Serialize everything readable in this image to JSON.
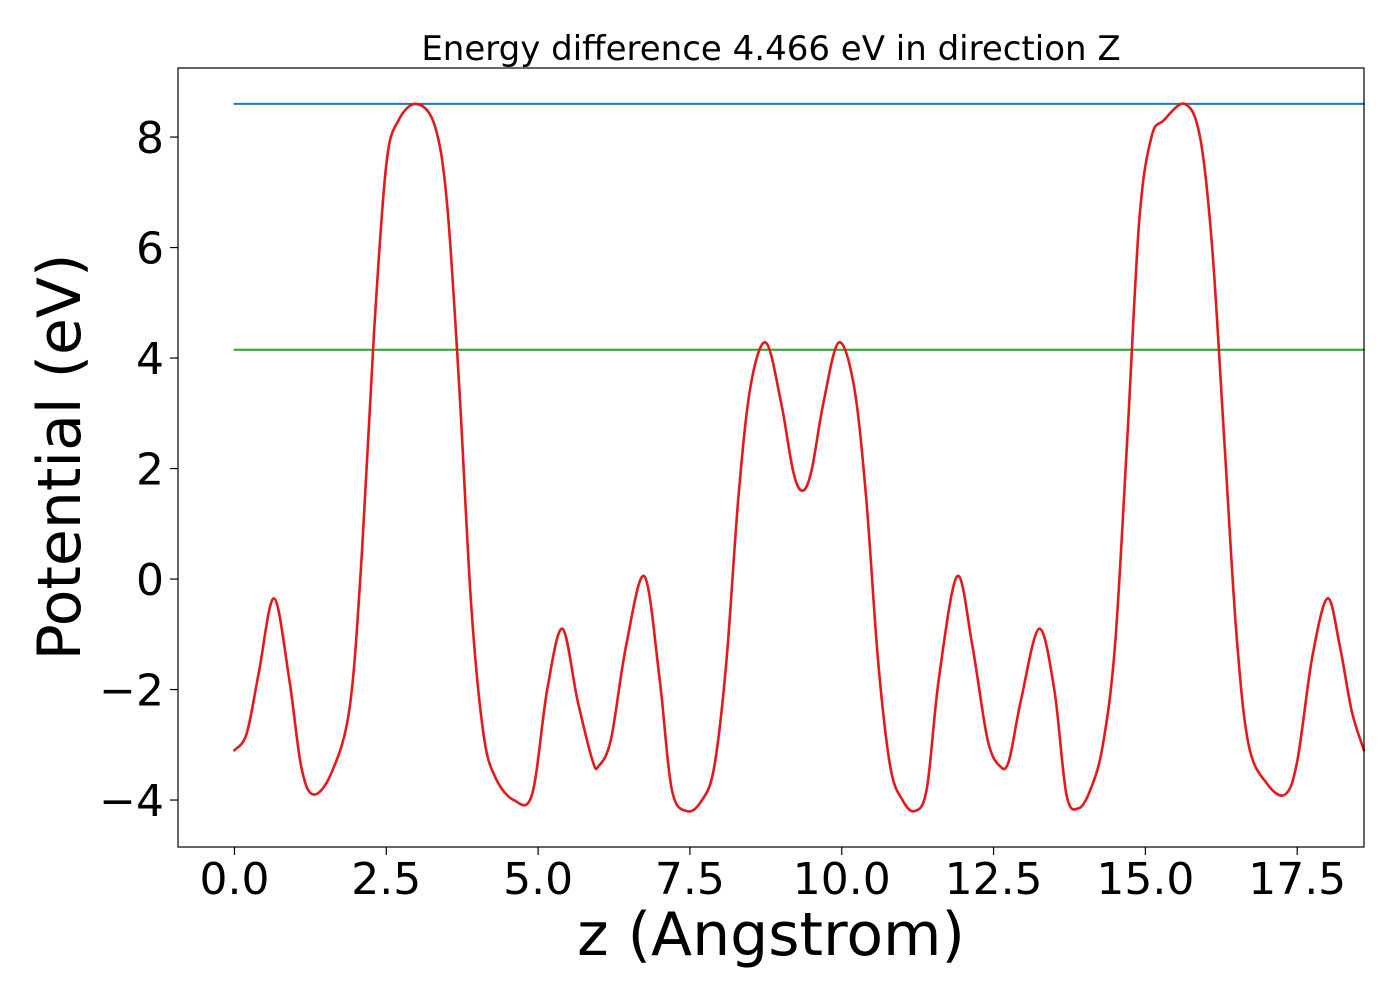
{
  "chart_data": {
    "type": "line",
    "title": "Energy difference 4.466 eV in direction Z",
    "xlabel": "z (Angstrom)",
    "ylabel": "Potential (eV)",
    "xlim": [
      -0.93,
      18.6
    ],
    "ylim": [
      -4.85,
      9.25
    ],
    "x_ticks": [
      0.0,
      2.5,
      5.0,
      7.5,
      10.0,
      12.5,
      15.0,
      17.5
    ],
    "x_tick_labels": [
      "0.0",
      "2.5",
      "5.0",
      "7.5",
      "10.0",
      "12.5",
      "15.0",
      "17.5"
    ],
    "y_ticks": [
      -4,
      -2,
      0,
      2,
      4,
      6,
      8
    ],
    "y_tick_labels": [
      "−4",
      "−2",
      "0",
      "2",
      "4",
      "6",
      "8"
    ],
    "grid": false,
    "series": [
      {
        "role": "potential",
        "color": "#e31a1c",
        "x": [
          0.0,
          0.2,
          0.4,
          0.65,
          0.9,
          1.1,
          1.3,
          1.6,
          1.9,
          2.1,
          2.3,
          2.5,
          2.7,
          3.0,
          3.3,
          3.5,
          3.7,
          3.9,
          4.1,
          4.3,
          4.6,
          4.9,
          5.15,
          5.4,
          5.65,
          5.9,
          6.0,
          6.2,
          6.45,
          6.75,
          7.0,
          7.2,
          7.45,
          7.7,
          7.9,
          8.1,
          8.3,
          8.5,
          8.75,
          9.0,
          9.2,
          9.35,
          9.5,
          9.7,
          9.95,
          10.2,
          10.4,
          10.6,
          10.8,
          11.0,
          11.2,
          11.4,
          11.6,
          11.9,
          12.15,
          12.4,
          12.6,
          12.75,
          12.95,
          13.25,
          13.5,
          13.7,
          13.9,
          14.1,
          14.3,
          14.5,
          14.7,
          14.9,
          15.1,
          15.3,
          15.65,
          15.9,
          16.1,
          16.3,
          16.5,
          16.7,
          17.0,
          17.3,
          17.5,
          17.75,
          18.0,
          18.2,
          18.4,
          18.6
        ],
        "values": [
          -3.1,
          -2.8,
          -1.7,
          -0.35,
          -1.8,
          -3.4,
          -3.9,
          -3.5,
          -2.3,
          0.5,
          4.5,
          7.5,
          8.3,
          8.6,
          8.2,
          6.8,
          3.5,
          -0.5,
          -2.8,
          -3.6,
          -4.0,
          -3.9,
          -2.0,
          -0.9,
          -2.2,
          -3.3,
          -3.38,
          -2.9,
          -1.2,
          0.05,
          -1.8,
          -3.8,
          -4.2,
          -4.0,
          -3.4,
          -1.5,
          1.5,
          3.5,
          4.28,
          3.2,
          1.95,
          1.6,
          1.95,
          3.2,
          4.28,
          3.5,
          1.5,
          -1.5,
          -3.4,
          -4.0,
          -4.2,
          -3.8,
          -1.8,
          0.05,
          -1.2,
          -2.9,
          -3.38,
          -3.3,
          -2.2,
          -0.9,
          -2.0,
          -3.9,
          -4.15,
          -3.8,
          -3.0,
          -1.2,
          2.5,
          6.5,
          8.0,
          8.3,
          8.6,
          8.0,
          6.0,
          2.5,
          -1.0,
          -3.0,
          -3.7,
          -3.9,
          -3.3,
          -1.4,
          -0.35,
          -1.2,
          -2.4,
          -3.1
        ]
      },
      {
        "role": "maximum",
        "color": "#1f77b4",
        "x": [
          0.0,
          18.6
        ],
        "values": [
          8.6,
          8.6
        ]
      },
      {
        "role": "average",
        "color": "#2ca02c",
        "x": [
          0.0,
          18.6
        ],
        "values": [
          4.15,
          4.15
        ]
      }
    ]
  }
}
